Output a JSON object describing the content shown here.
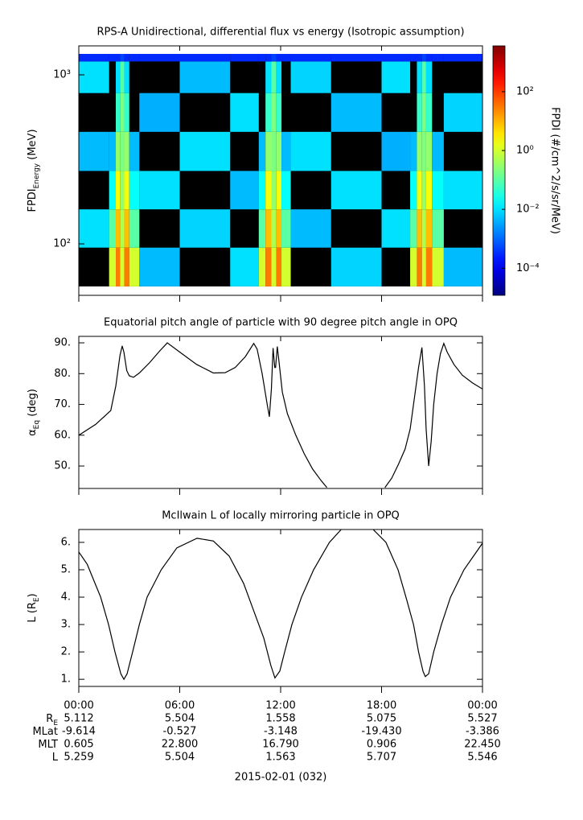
{
  "chart_data": [
    {
      "type": "spectrogram",
      "title": "RPS-A Unidirectional, differential flux vs energy (Isotropic assumption)",
      "ylabel": [
        "FPDI",
        "Energy",
        " (MeV)"
      ],
      "ylog": true,
      "ylim": [
        49.6,
        1484
      ],
      "yticks": [
        {
          "value": 100,
          "label": "10²"
        },
        {
          "value": 1000,
          "label": "10³"
        }
      ],
      "xlim": [
        0,
        24
      ],
      "xticks": [
        0,
        6,
        12,
        18,
        24
      ],
      "x": [
        0,
        1.8,
        2.2,
        2.45,
        2.7,
        3.0,
        3.6,
        6,
        9,
        10.7,
        11.1,
        11.45,
        11.75,
        12.05,
        12.6,
        15,
        18,
        19.7,
        20.1,
        20.4,
        20.65,
        21.0,
        21.7,
        24
      ],
      "bins": [
        56,
        95,
        160,
        270,
        460,
        780,
        1200,
        1330
      ],
      "z": [
        [
          null,
          0.01,
          null,
          0.005,
          null,
          0.01,
          0.0003
        ],
        [
          1,
          0.1,
          0.02,
          0.005,
          null,
          null,
          0.0003
        ],
        [
          30,
          8,
          2,
          0.3,
          0.05,
          0.01,
          0.0003
        ],
        [
          1,
          0.5,
          0.3,
          0.2,
          0.2,
          0.1,
          0.0005
        ],
        [
          30,
          8,
          2,
          0.3,
          0.05,
          0.01,
          0.0003
        ],
        [
          1,
          0.1,
          0.02,
          0.005,
          null,
          null,
          0.0003
        ],
        [
          0.005,
          null,
          0.01,
          null,
          0.004,
          null,
          0.0003
        ],
        [
          null,
          0.008,
          null,
          0.01,
          null,
          0.005,
          0.0003
        ],
        [
          0.01,
          null,
          0.005,
          null,
          0.01,
          null,
          0.0003
        ],
        [
          1,
          0.1,
          0.02,
          0.005,
          null,
          null,
          0.0003
        ],
        [
          30,
          8,
          2,
          0.3,
          0.05,
          0.01,
          0.0003
        ],
        [
          1,
          0.5,
          0.3,
          0.2,
          0.2,
          0.1,
          0.0005
        ],
        [
          30,
          8,
          2,
          0.3,
          0.05,
          0.01,
          0.0003
        ],
        [
          1,
          0.1,
          0.02,
          0.005,
          null,
          null,
          0.0003
        ],
        [
          null,
          0.005,
          null,
          0.01,
          null,
          0.008,
          0.0003
        ],
        [
          0.008,
          null,
          0.01,
          null,
          0.005,
          null,
          0.0003
        ],
        [
          null,
          0.01,
          null,
          0.004,
          null,
          0.01,
          0.0003
        ],
        [
          1,
          0.1,
          0.02,
          0.005,
          null,
          null,
          0.0003
        ],
        [
          30,
          8,
          2,
          0.3,
          0.05,
          0.01,
          0.0003
        ],
        [
          1,
          0.5,
          0.3,
          0.2,
          0.2,
          0.1,
          0.0005
        ],
        [
          30,
          8,
          2,
          0.3,
          0.05,
          0.01,
          0.0003
        ],
        [
          1,
          0.1,
          0.02,
          0.005,
          null,
          null,
          0.0003
        ],
        [
          0.005,
          null,
          0.01,
          null,
          0.008,
          null,
          0.0003
        ]
      ],
      "zlabel": "FPDI (#/cm^2/s/sr/MeV)",
      "zlim": [
        1.2e-05,
        3600
      ],
      "zticks": [
        {
          "value": 0.0001,
          "label": "10⁻⁴"
        },
        {
          "value": 0.01,
          "label": "10⁻²"
        },
        {
          "value": 1,
          "label": "10⁰"
        },
        {
          "value": 100,
          "label": "10²"
        }
      ]
    },
    {
      "type": "line",
      "title": "Equatorial pitch angle of particle with 90 degree pitch angle in OPQ",
      "ylabel": [
        "α",
        "Eq",
        " (deg)"
      ],
      "ylim": [
        42.7,
        92.1
      ],
      "yticks": [
        {
          "value": 50,
          "label": "50."
        },
        {
          "value": 60,
          "label": "60."
        },
        {
          "value": 70,
          "label": "70."
        },
        {
          "value": 80,
          "label": "80."
        },
        {
          "value": 90,
          "label": "90."
        }
      ],
      "xlim": [
        0,
        24
      ],
      "xticks": [
        0,
        6,
        12,
        18,
        24
      ],
      "series": [
        {
          "color": "#000000",
          "x": [
            0,
            1.0,
            1.9,
            2.2,
            2.45,
            2.58,
            2.68,
            2.85,
            3.0,
            3.25,
            3.6,
            4.2,
            4.8,
            5.26,
            6.0,
            7.0,
            8.0,
            8.7,
            9.3,
            9.9,
            10.4,
            10.6,
            10.9,
            11.2,
            11.33,
            11.45,
            11.55,
            11.65,
            11.7,
            11.8,
            11.9,
            12.1,
            12.4,
            12.9,
            13.4,
            13.9,
            14.4,
            14.75,
            16.5,
            18.2,
            18.6,
            19.0,
            19.4,
            19.7,
            19.95,
            20.2,
            20.4,
            20.55,
            20.65,
            20.8,
            20.95,
            21.1,
            21.3,
            21.5,
            21.7,
            21.9,
            22.3,
            22.8,
            23.4,
            24
          ],
          "values": [
            60,
            63.5,
            68,
            76,
            86,
            89,
            87,
            81,
            79.3,
            78.8,
            80.2,
            83.5,
            87.3,
            90,
            87,
            83,
            80.2,
            80.3,
            82,
            85.5,
            89.8,
            88,
            80,
            70,
            66,
            75,
            88.3,
            82,
            82,
            88.8,
            84,
            74,
            67,
            60,
            54,
            49,
            45.3,
            43,
            null,
            43,
            46,
            50.5,
            55.5,
            62,
            72,
            82,
            88.5,
            76,
            62,
            50,
            58,
            70,
            80,
            86.5,
            89.8,
            87,
            83,
            79.5,
            77,
            75
          ]
        }
      ]
    },
    {
      "type": "line",
      "title": "McIlwain L of locally mirroring particle in OPQ",
      "ylabel": [
        "L (R",
        "E",
        ")"
      ],
      "ylim": [
        0.74,
        6.47
      ],
      "yticks": [
        {
          "value": 1,
          "label": "1."
        },
        {
          "value": 2,
          "label": "2."
        },
        {
          "value": 3,
          "label": "3."
        },
        {
          "value": 4,
          "label": "4."
        },
        {
          "value": 5,
          "label": "5."
        },
        {
          "value": 6,
          "label": "6."
        }
      ],
      "xlim": [
        0,
        24
      ],
      "xticks": [
        {
          "value": 0,
          "label": "00:00"
        },
        {
          "value": 6,
          "label": "06:00"
        },
        {
          "value": 12,
          "label": "12:00"
        },
        {
          "value": 18,
          "label": "18:00"
        },
        {
          "value": 24,
          "label": "00:00"
        }
      ],
      "series": [
        {
          "color": "#000000",
          "x": [
            0,
            0.5,
            1.3,
            1.77,
            2.15,
            2.5,
            2.68,
            2.87,
            3.2,
            3.6,
            4.06,
            4.9,
            5.83,
            7.03,
            8.0,
            8.94,
            9.8,
            10.4,
            11.0,
            11.42,
            11.66,
            11.95,
            12.24,
            12.67,
            13.24,
            13.96,
            14.9,
            15.6,
            16.5,
            17.5,
            18.26,
            18.98,
            19.45,
            19.9,
            20.2,
            20.46,
            20.6,
            20.8,
            21.1,
            21.56,
            22.1,
            22.9,
            24
          ],
          "values": [
            5.65,
            5.2,
            4,
            3,
            2,
            1.2,
            1.0,
            1.2,
            2,
            3,
            4,
            5,
            5.8,
            6.15,
            6.05,
            5.5,
            4.5,
            3.5,
            2.5,
            1.5,
            1.05,
            1.3,
            2.0,
            3,
            4,
            5,
            6,
            6.47,
            null,
            6.47,
            6,
            5,
            4,
            3,
            2,
            1.3,
            1.1,
            1.2,
            2,
            3,
            4,
            5,
            5.97
          ]
        }
      ]
    }
  ],
  "ephemeris": {
    "row_labels": [
      [
        "R",
        "E"
      ],
      [
        "MLat"
      ],
      [
        "MLT"
      ],
      [
        "L"
      ]
    ],
    "rows": [
      [
        "5.112",
        "5.504",
        "1.558",
        "5.075",
        "5.527"
      ],
      [
        "-9.614",
        "-0.527",
        "-3.148",
        "-19.430",
        "-3.386"
      ],
      [
        "0.605",
        "22.800",
        "16.790",
        "0.906",
        "22.450"
      ],
      [
        "5.259",
        "5.504",
        "1.563",
        "5.707",
        "5.546"
      ]
    ],
    "date": "2015-02-01 (032)"
  }
}
